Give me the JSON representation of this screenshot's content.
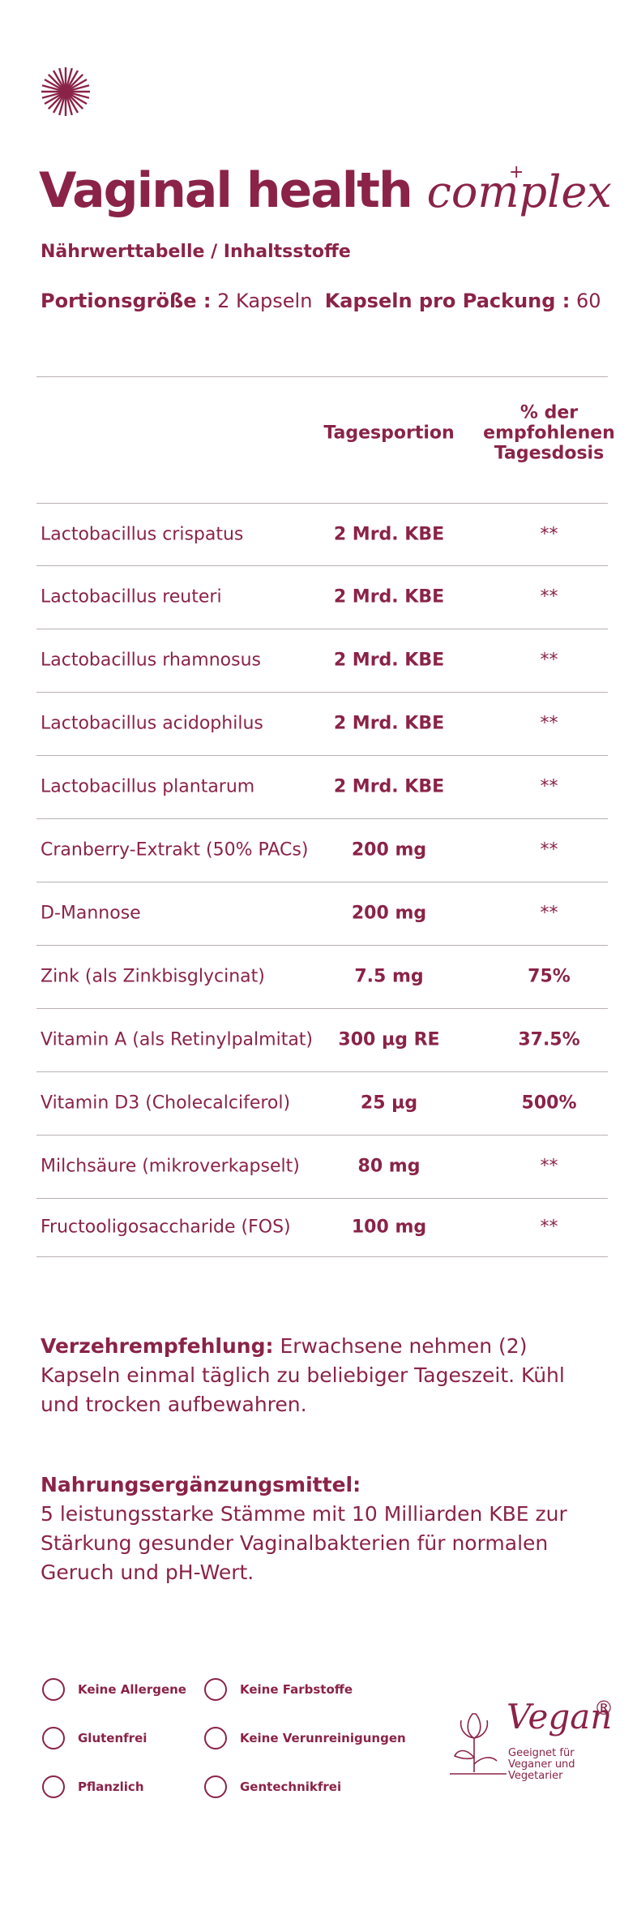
{
  "header": {
    "title": "Vaginal health",
    "title_script": "complex",
    "title_mark": "+",
    "subtitle": "Nährwerttabelle / Inhaltsstoffe",
    "portion_label": "Portionsgröße :",
    "portion_value": "2 Kapseln",
    "pack_label": "Kapseln pro Packung :",
    "pack_value": "60"
  },
  "table": {
    "columns": [
      "",
      "Tagesportion",
      "% der empfohlenen Tagesdosis"
    ],
    "rows": [
      [
        "Lactobacillus crispatus",
        "2 Mrd. KBE",
        "**"
      ],
      [
        "Lactobacillus reuteri",
        "2 Mrd. KBE",
        "**"
      ],
      [
        "Lactobacillus rhamnosus",
        "2 Mrd. KBE",
        "**"
      ],
      [
        "Lactobacillus acidophilus",
        "2 Mrd. KBE",
        "**"
      ],
      [
        "Lactobacillus plantarum",
        "2 Mrd. KBE",
        "**"
      ],
      [
        "Cranberry-Extrakt (50% PACs)",
        "200 mg",
        "**"
      ],
      [
        "D-Mannose",
        "200 mg",
        "**"
      ],
      [
        "Zink (als Zinkbisglycinat)",
        "7.5 mg",
        "75%"
      ],
      [
        "Vitamin A (als Retinylpalmitat)",
        "300 µg RE",
        "37.5%"
      ],
      [
        "Vitamin D3 (Cholecalciferol)",
        "25 µg",
        "500%"
      ],
      [
        "Milchsäure (mikroverkapselt)",
        "80 mg",
        "**"
      ],
      [
        "Fructooligosaccharide (FOS)",
        "100 mg",
        "**"
      ]
    ]
  },
  "notes": [
    {
      "label": "Verzehrempfehlung:",
      "text": "Erwachsene nehmen (2) Kapseln einmal täglich zu beliebiger Tageszeit. Kühl und trocken aufbewahren."
    },
    {
      "label": "Nahrungsergänzungsmittel:",
      "text": "5 leistungsstarke Stämme mit 10 Milliarden KBE zur Stärkung gesunder Vaginalbakterien für normalen Geruch und pH-Wert."
    }
  ],
  "badges": [
    "Keine Allergene",
    "Keine Farbstoffe",
    "Glutenfrei",
    "Keine Verunreinigungen",
    "Pflanzlich",
    "Gentechnikfrei"
  ],
  "vegan": {
    "title": "Vegan",
    "mark": "®",
    "text": "Geeignet für Veganer und Vegetarier"
  }
}
